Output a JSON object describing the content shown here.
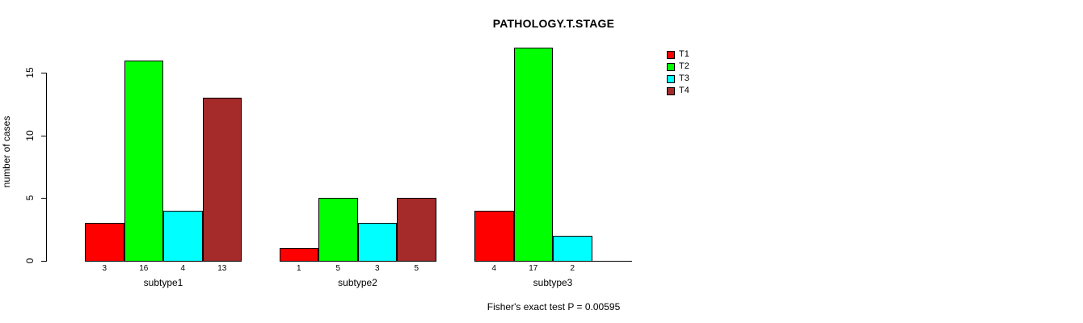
{
  "title": "PATHOLOGY.T.STAGE",
  "y_axis_label": "number of cases",
  "footnote": "Fisher's exact test P = 0.00595",
  "colors": {
    "t1": "#FF0000",
    "t2": "#00FF00",
    "t3": "#00FFFF",
    "t4": "#A52A2A",
    "axis": "#000000",
    "background": "#FFFFFF"
  },
  "legend": {
    "position": "top-right",
    "labels": [
      "T1",
      "T2",
      "T3",
      "T4"
    ]
  },
  "chart_data": {
    "type": "bar",
    "layout": "grouped",
    "title": "PATHOLOGY.T.STAGE",
    "ylabel": "number of cases",
    "xlabel": "",
    "categories": [
      "subtype1",
      "subtype2",
      "subtype3"
    ],
    "series": [
      {
        "name": "T1",
        "color": "#FF0000",
        "values": [
          3,
          1,
          4
        ]
      },
      {
        "name": "T2",
        "color": "#00FF00",
        "values": [
          16,
          5,
          17
        ]
      },
      {
        "name": "T3",
        "color": "#00FFFF",
        "values": [
          4,
          3,
          2
        ]
      },
      {
        "name": "T4",
        "color": "#A52A2A",
        "values": [
          13,
          5,
          0
        ]
      }
    ],
    "bar_value_labels_shown": true,
    "zero_values_drawn_as_baseline_segment": true,
    "yticks": [
      0,
      5,
      10,
      15
    ],
    "ylim": [
      0,
      17
    ],
    "grid": false,
    "legend_position": "top-right",
    "annotation": "Fisher's exact test P = 0.00595"
  }
}
